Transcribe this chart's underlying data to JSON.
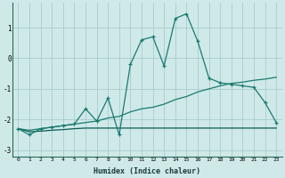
{
  "xlabel": "Humidex (Indice chaleur)",
  "xlim": [
    -0.5,
    23.5
  ],
  "ylim": [
    -3.2,
    1.8
  ],
  "background_color": "#cfe9e9",
  "grid_color": "#a8cccc",
  "line_color_main": "#1a7a6e",
  "line_color_flat": "#0d5a52",
  "yticks": [
    -3,
    -2,
    -1,
    0,
    1
  ],
  "xticks": [
    0,
    1,
    2,
    3,
    4,
    5,
    6,
    7,
    8,
    9,
    10,
    11,
    12,
    13,
    14,
    15,
    16,
    17,
    18,
    19,
    20,
    21,
    22,
    23
  ],
  "series1_x": [
    0,
    1,
    2,
    3,
    4,
    5,
    6,
    7,
    8,
    9,
    10,
    11,
    12,
    13,
    14,
    15,
    16,
    17,
    18,
    19,
    20,
    21,
    22,
    23
  ],
  "series1_y": [
    -2.3,
    -2.5,
    -2.3,
    -2.25,
    -2.2,
    -2.15,
    -1.65,
    -2.05,
    -1.3,
    -2.5,
    -0.2,
    0.6,
    0.7,
    -0.25,
    1.3,
    1.45,
    0.55,
    -0.65,
    -0.8,
    -0.85,
    -0.9,
    -0.95,
    -1.45,
    -2.1
  ],
  "series2_x": [
    0,
    1,
    2,
    3,
    4,
    5,
    6,
    7,
    8,
    9,
    10,
    11,
    12,
    13,
    14,
    15,
    16,
    17,
    18,
    19,
    20,
    21,
    22,
    23
  ],
  "series2_y": [
    -2.3,
    -2.35,
    -2.3,
    -2.25,
    -2.2,
    -2.15,
    -2.1,
    -2.05,
    -1.95,
    -1.9,
    -1.75,
    -1.65,
    -1.6,
    -1.5,
    -1.35,
    -1.25,
    -1.1,
    -1.0,
    -0.9,
    -0.82,
    -0.78,
    -0.72,
    -0.68,
    -0.62
  ],
  "series3_x": [
    0,
    1,
    2,
    3,
    4,
    5,
    6,
    7,
    8,
    9,
    10,
    11,
    12,
    13,
    14,
    15,
    16,
    17,
    18,
    19,
    20,
    21,
    22,
    23
  ],
  "series3_y": [
    -2.3,
    -2.4,
    -2.38,
    -2.35,
    -2.33,
    -2.3,
    -2.28,
    -2.28,
    -2.28,
    -2.28,
    -2.28,
    -2.28,
    -2.28,
    -2.28,
    -2.28,
    -2.28,
    -2.28,
    -2.28,
    -2.28,
    -2.28,
    -2.28,
    -2.28,
    -2.28,
    -2.28
  ]
}
